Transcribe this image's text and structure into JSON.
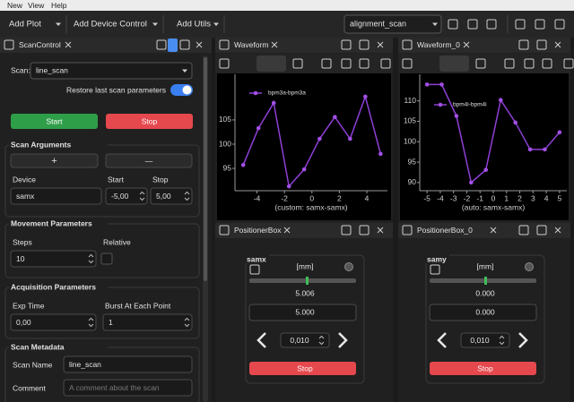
{
  "menu": [
    "New",
    "View",
    "Help"
  ],
  "toolbar": {
    "buttons": [
      "Add Plot",
      "Add Device Control",
      "Add Utils"
    ],
    "scan_combo": "alignment_scan"
  },
  "scan_control": {
    "tab": "ScanControl",
    "scan_label": "Scan:",
    "scan": "line_scan",
    "restore": "Restore last scan parameters",
    "start": "Start",
    "stop": "Stop",
    "args": {
      "title": "Scan Arguments",
      "plus": "+",
      "minus": "—",
      "headers": [
        "Device",
        "Start",
        "Stop"
      ],
      "values": [
        "samx",
        "-5,00",
        "5,00"
      ]
    },
    "movement": {
      "title": "Movement Parameters",
      "headers": [
        "Steps",
        "Relative"
      ],
      "steps": "10"
    },
    "acquisition": {
      "title": "Acquisition Parameters",
      "headers": [
        "Exp Time",
        "Burst At Each Point"
      ],
      "values": [
        "0,00",
        "1"
      ]
    },
    "metadata": {
      "title": "Scan Metadata",
      "name_label": "Scan Name",
      "name": "line_scan",
      "comment_label": "Comment",
      "comment_placeholder": "A comment about the scan"
    }
  },
  "chart_data": [
    {
      "type": "line",
      "tab": "Waveform",
      "legend": "bpm3a-bpm3a",
      "xlabel": "(custom: samx-samx)",
      "color": "#8f3fd6",
      "x": [
        -5,
        -3.89,
        -2.78,
        -1.67,
        -0.56,
        0.56,
        1.67,
        2.78,
        3.89,
        5
      ],
      "values": [
        95.7,
        103.3,
        108.5,
        91.3,
        94.8,
        101.1,
        105.6,
        101.1,
        109.8,
        98.0
      ],
      "xlim": [
        -5.6,
        5.5
      ],
      "ylim": [
        90.4,
        114.4
      ],
      "xticks": [
        -4,
        -2,
        0,
        2,
        4
      ],
      "yticks": [
        95,
        100,
        105
      ]
    },
    {
      "type": "line",
      "tab": "Waveform_0",
      "legend": "bpm4i-bpm4i",
      "xlabel": "(auto: samx-samx)",
      "color": "#8f3fd6",
      "x": [
        -5,
        -3.89,
        -2.78,
        -1.67,
        -0.56,
        0.56,
        1.67,
        2.78,
        3.89,
        5
      ],
      "values": [
        114,
        114,
        106.3,
        90,
        93.1,
        110.2,
        104.7,
        98.1,
        98.1,
        102.3
      ],
      "xlim": [
        -5.55,
        5.55
      ],
      "ylim": [
        88,
        116.5
      ],
      "xticks": [
        -5,
        -4,
        -3,
        -2,
        -1,
        0,
        1,
        2,
        3,
        4,
        5
      ],
      "yticks": [
        90,
        95,
        100,
        105,
        110
      ]
    }
  ],
  "positioners": [
    {
      "tab": "PositionerBox",
      "device": "samx",
      "unit": "[mm]",
      "readback": "5.006",
      "setpoint": "5.000",
      "step": "0,010",
      "stop": "Stop"
    },
    {
      "tab": "PositionerBox_0",
      "device": "samy",
      "unit": "[mm]",
      "readback": "0.000",
      "setpoint": "0.000",
      "step": "0,010",
      "stop": "Stop"
    }
  ]
}
